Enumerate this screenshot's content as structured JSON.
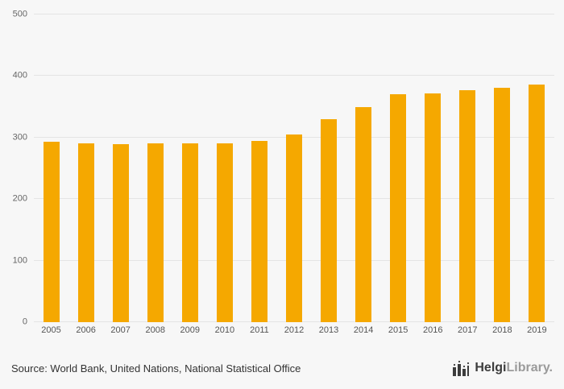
{
  "chart_data": {
    "type": "bar",
    "categories": [
      "2005",
      "2006",
      "2007",
      "2008",
      "2009",
      "2010",
      "2011",
      "2012",
      "2013",
      "2014",
      "2015",
      "2016",
      "2017",
      "2018",
      "2019"
    ],
    "values": [
      293,
      290,
      289,
      290,
      291,
      291,
      295,
      305,
      330,
      350,
      370,
      372,
      377,
      381,
      386
    ],
    "title": "",
    "xlabel": "",
    "ylabel": "",
    "ylim": [
      0,
      500
    ],
    "yticks": [
      0,
      100,
      200,
      300,
      400,
      500
    ],
    "bar_color": "#f5a800",
    "grid": true,
    "legend": false
  },
  "footer": {
    "source": "Source: World Bank, United Nations, National Statistical Office",
    "logo_primary": "Helgi",
    "logo_secondary": "Library",
    "logo_suffix": "."
  }
}
